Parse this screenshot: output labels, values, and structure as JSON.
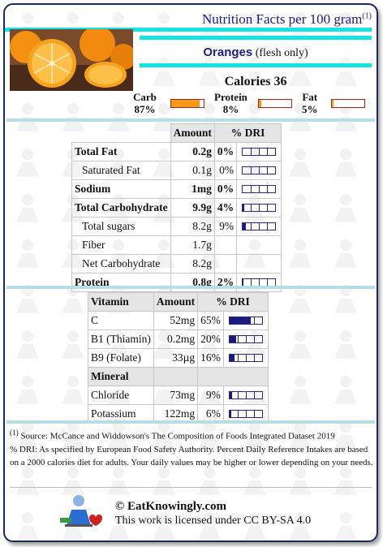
{
  "header": {
    "title": "Nutrition Facts per 100 gram",
    "title_note": "(1)"
  },
  "food": {
    "name": "Oranges",
    "qualifier": "(flesh only)"
  },
  "calories": {
    "label": "Calories",
    "value": "36"
  },
  "macros": [
    {
      "label": "Carb",
      "pct": "87%",
      "fraction": 0.87
    },
    {
      "label": "Protein",
      "pct": "8%",
      "fraction": 0.08
    },
    {
      "label": "Fat",
      "pct": "5%",
      "fraction": 0.05
    }
  ],
  "nutrients": {
    "header": {
      "amount": "Amount",
      "dri": "% DRI"
    },
    "rows": [
      {
        "name": "Total Fat",
        "amount": "0.2g",
        "dri": "0%",
        "fraction": 0.0,
        "bold": true
      },
      {
        "name": "Saturated Fat",
        "amount": "0.1g",
        "dri": "0%",
        "fraction": 0.0
      },
      {
        "name": "Sodium",
        "amount": "1mg",
        "dri": "0%",
        "fraction": 0.0,
        "bold": true
      },
      {
        "name": "Total Carbohydrate",
        "amount": "9.9g",
        "dri": "4%",
        "fraction": 0.04,
        "bold": true
      },
      {
        "name": "Total sugars",
        "amount": "8.2g",
        "dri": "9%",
        "fraction": 0.09
      },
      {
        "name": "Fiber",
        "amount": "1.7g"
      },
      {
        "name": "Net Carbohydrate",
        "amount": "8.2g"
      },
      {
        "name": "Protein",
        "amount": "0.8g",
        "dri": "2%",
        "fraction": 0.02,
        "bold": true
      }
    ]
  },
  "vitamins": {
    "header": {
      "name": "Vitamin",
      "amount": "Amount",
      "dri": "% DRI"
    },
    "rows": [
      {
        "name": "C",
        "amount": "52mg",
        "dri": "65%",
        "fraction": 0.65
      },
      {
        "name": "B1 (Thiamin)",
        "amount": "0.2mg",
        "dri": "20%",
        "fraction": 0.2
      },
      {
        "name": "B9 (Folate)",
        "amount": "33µg",
        "dri": "16%",
        "fraction": 0.16
      }
    ]
  },
  "minerals": {
    "header": "Mineral",
    "rows": [
      {
        "name": "Chloride",
        "amount": "73mg",
        "dri": "9%",
        "fraction": 0.09
      },
      {
        "name": "Potassium",
        "amount": "122mg",
        "dri": "6%",
        "fraction": 0.06
      }
    ]
  },
  "footnote": {
    "marker": "(1)",
    "source": "Source: McCance and Widdowson's The Composition of Foods Integrated Dataset 2019",
    "dri_note": "% DRI: As specified by European Food Safety Authority. Percent Daily Reference Intakes are based on a 2000 calories diet for adults. Your daily values may be higher or lower depending on your needs."
  },
  "credit": {
    "site": "© EatKnowingly.com",
    "license": "This work is licensed under CC BY-SA 4.0"
  },
  "colors": {
    "accent_cyan": "#14e4e4",
    "title_blue": "#1b1b8a",
    "macro_fill": "#f59a1a",
    "dri_fill": "#1a1a80"
  }
}
